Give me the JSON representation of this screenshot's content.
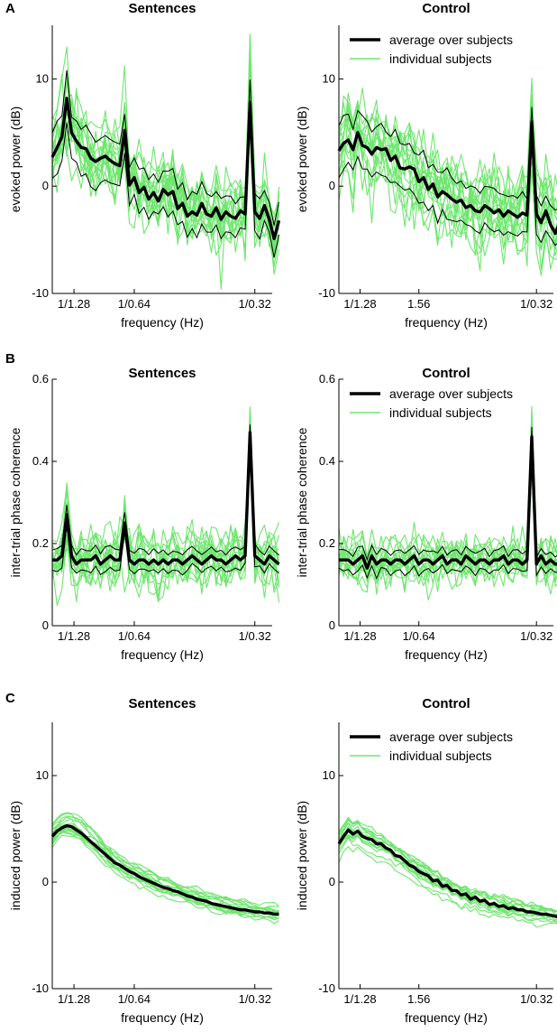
{
  "figure": {
    "panels": [
      {
        "letter": "A",
        "titles": [
          "Sentences",
          "Control"
        ]
      },
      {
        "letter": "B",
        "titles": [
          "Sentences",
          "Control"
        ]
      },
      {
        "letter": "C",
        "titles": [
          "Sentences",
          "Control"
        ]
      }
    ],
    "legend": {
      "average": "average over subjects",
      "individual": "individual subjects"
    }
  },
  "colors": {
    "individual": "#6ee66e",
    "average": "#000000",
    "bounds": "#000000"
  },
  "chart_data": [
    {
      "id": "A-sentences",
      "type": "line",
      "title": "Sentences",
      "xlabel": "frequency (Hz)",
      "ylabel": "evoked power (dB)",
      "xlim": [
        0.5,
        3.35
      ],
      "ylim": [
        -10,
        15
      ],
      "yticks": [
        -10,
        0,
        10
      ],
      "ytick_labels": [
        "-10",
        "0",
        "10"
      ],
      "xticks": [
        0.78125,
        1.5625,
        3.125
      ],
      "xtick_labels": [
        "1/1.28",
        "1/0.64",
        "1/0.32"
      ],
      "legend": false,
      "noise": 2.8,
      "average": {
        "x0": 0.5,
        "dx": 0.0625,
        "values": [
          2.7,
          3.6,
          4.6,
          8.2,
          5.0,
          4.2,
          3.6,
          3.5,
          2.6,
          2.3,
          2.6,
          2.8,
          2.4,
          2.1,
          1.9,
          5.2,
          0.1,
          0.8,
          -0.6,
          -0.1,
          -1.2,
          -0.6,
          -1.4,
          -0.3,
          -0.8,
          -0.5,
          -2.1,
          -1.6,
          -2.8,
          -2.4,
          -2.7,
          -1.6,
          -2.6,
          -2.8,
          -2.0,
          -3.1,
          -2.4,
          -2.8,
          -3.0,
          -2.3,
          -2.6,
          7.8,
          -2.4,
          -3.0,
          -1.8,
          -3.1,
          -4.9,
          -3.2
        ]
      },
      "upper_offset": [
        2.2,
        1.4
      ],
      "lower_offset": [
        2.2,
        1.4
      ]
    },
    {
      "id": "A-control",
      "type": "line",
      "title": "Control",
      "xlabel": "frequency (Hz)",
      "ylabel": "evoked power (dB)",
      "xlim": [
        0.5,
        3.35
      ],
      "ylim": [
        -10,
        15
      ],
      "yticks": [
        -10,
        0,
        10
      ],
      "ytick_labels": [
        "-10",
        "0",
        "10"
      ],
      "xticks": [
        0.78125,
        1.5625,
        3.125
      ],
      "xtick_labels": [
        "1/1.28",
        "1.56",
        "1/0.32"
      ],
      "legend": true,
      "noise": 2.8,
      "average": {
        "x0": 0.5,
        "dx": 0.0625,
        "values": [
          3.3,
          4.0,
          4.3,
          3.4,
          5.0,
          3.8,
          3.6,
          3.0,
          3.6,
          3.4,
          3.5,
          2.4,
          2.8,
          1.7,
          1.6,
          1.8,
          1.6,
          0.4,
          0.8,
          -0.3,
          0.2,
          -1.0,
          -0.5,
          -0.8,
          -1.2,
          -1.5,
          -1.3,
          -2.0,
          -1.8,
          -2.3,
          -2.4,
          -1.8,
          -2.1,
          -2.5,
          -2.2,
          -2.8,
          -2.3,
          -2.6,
          -2.9,
          -2.5,
          -2.7,
          6.0,
          -2.6,
          -3.4,
          -2.3,
          -3.6,
          -4.4,
          -3.3
        ]
      },
      "upper_offset": [
        2.4,
        1.5
      ],
      "lower_offset": [
        2.4,
        1.5
      ]
    },
    {
      "id": "B-sentences",
      "type": "line",
      "title": "Sentences",
      "xlabel": "frequency (Hz)",
      "ylabel": "inter-trial phase coherence",
      "xlim": [
        0.5,
        3.35
      ],
      "ylim": [
        0,
        0.6
      ],
      "yticks": [
        0,
        0.2,
        0.4,
        0.6
      ],
      "ytick_labels": [
        "0",
        "0.2",
        "0.4",
        "0.6"
      ],
      "xticks": [
        0.78125,
        1.5625,
        3.125
      ],
      "xtick_labels": [
        "1/1.28",
        "1/0.64",
        "1/0.32"
      ],
      "legend": false,
      "noise": 0.05,
      "average": {
        "x0": 0.5,
        "dx": 0.0625,
        "values": [
          0.16,
          0.16,
          0.17,
          0.27,
          0.17,
          0.15,
          0.16,
          0.16,
          0.16,
          0.17,
          0.15,
          0.16,
          0.17,
          0.16,
          0.16,
          0.25,
          0.16,
          0.15,
          0.16,
          0.16,
          0.15,
          0.16,
          0.15,
          0.16,
          0.15,
          0.16,
          0.16,
          0.15,
          0.16,
          0.17,
          0.16,
          0.15,
          0.16,
          0.17,
          0.16,
          0.16,
          0.15,
          0.16,
          0.17,
          0.16,
          0.17,
          0.47,
          0.17,
          0.16,
          0.15,
          0.17,
          0.16,
          0.15
        ]
      },
      "upper_offset": [
        0.025,
        0.022
      ],
      "lower_offset": [
        0.025,
        0.022
      ]
    },
    {
      "id": "B-control",
      "type": "line",
      "title": "Control",
      "xlabel": "frequency (Hz)",
      "ylabel": "inter-trial phase coherence",
      "xlim": [
        0.5,
        3.35
      ],
      "ylim": [
        0,
        0.6
      ],
      "yticks": [
        0,
        0.2,
        0.4,
        0.6
      ],
      "ytick_labels": [
        "0",
        "0.2",
        "0.4",
        "0.6"
      ],
      "xticks": [
        0.78125,
        1.5625,
        3.125
      ],
      "xtick_labels": [
        "1/1.28",
        "1/0.64",
        "1/0.32"
      ],
      "legend": true,
      "noise": 0.045,
      "average": {
        "x0": 0.5,
        "dx": 0.0625,
        "values": [
          0.16,
          0.16,
          0.16,
          0.15,
          0.16,
          0.17,
          0.14,
          0.17,
          0.15,
          0.16,
          0.16,
          0.15,
          0.16,
          0.16,
          0.15,
          0.16,
          0.17,
          0.15,
          0.16,
          0.16,
          0.15,
          0.16,
          0.17,
          0.15,
          0.16,
          0.16,
          0.15,
          0.17,
          0.16,
          0.15,
          0.16,
          0.16,
          0.15,
          0.16,
          0.16,
          0.17,
          0.15,
          0.16,
          0.16,
          0.15,
          0.16,
          0.46,
          0.15,
          0.17,
          0.15,
          0.16,
          0.15,
          0.15
        ]
      },
      "upper_offset": [
        0.025,
        0.022
      ],
      "lower_offset": [
        0.025,
        0.022
      ]
    },
    {
      "id": "C-sentences",
      "type": "line",
      "title": "Sentences",
      "xlabel": "frequency (Hz)",
      "ylabel": "induced power (dB)",
      "xlim": [
        0.5,
        3.35
      ],
      "ylim": [
        -10,
        15
      ],
      "yticks": [
        -10,
        0,
        10
      ],
      "ytick_labels": [
        "-10",
        "0",
        "10"
      ],
      "xticks": [
        0.78125,
        1.5625,
        3.125
      ],
      "xtick_labels": [
        "1/1.28",
        "1/0.64",
        "1/0.32"
      ],
      "legend": false,
      "noise": 0.9,
      "smooth": true,
      "average": {
        "x0": 0.5,
        "dx": 0.0625,
        "values": [
          4.3,
          4.8,
          5.1,
          5.3,
          5.2,
          4.9,
          4.6,
          4.2,
          3.8,
          3.4,
          3.0,
          2.6,
          2.2,
          1.8,
          1.6,
          1.3,
          1.0,
          0.8,
          0.5,
          0.3,
          0.1,
          -0.1,
          -0.3,
          -0.5,
          -0.6,
          -0.8,
          -0.9,
          -1.1,
          -1.3,
          -1.4,
          -1.6,
          -1.7,
          -1.8,
          -2.0,
          -2.1,
          -2.2,
          -2.3,
          -2.4,
          -2.5,
          -2.6,
          -2.6,
          -2.7,
          -2.8,
          -2.8,
          -2.9,
          -2.9,
          -3.0,
          -3.0
        ]
      },
      "upper_offset": [
        0,
        0
      ],
      "lower_offset": [
        0,
        0
      ]
    },
    {
      "id": "C-control",
      "type": "line",
      "title": "Control",
      "xlabel": "frequency (Hz)",
      "ylabel": "induced power (dB)",
      "xlim": [
        0.5,
        3.35
      ],
      "ylim": [
        -10,
        15
      ],
      "yticks": [
        -10,
        0,
        10
      ],
      "ytick_labels": [
        "-10",
        "0",
        "10"
      ],
      "xticks": [
        0.78125,
        1.5625,
        3.125
      ],
      "xtick_labels": [
        "1/1.28",
        "1.56",
        "1/0.32"
      ],
      "legend": true,
      "noise": 0.9,
      "smooth": true,
      "average": {
        "x0": 0.5,
        "dx": 0.0625,
        "values": [
          3.6,
          4.3,
          4.9,
          4.5,
          4.8,
          4.3,
          4.1,
          4.0,
          3.6,
          3.6,
          3.2,
          3.0,
          2.5,
          2.4,
          2.0,
          1.6,
          1.4,
          1.0,
          0.8,
          0.6,
          0.1,
          0.2,
          -0.4,
          -0.3,
          -0.8,
          -0.8,
          -1.2,
          -1.1,
          -1.6,
          -1.4,
          -1.8,
          -1.7,
          -2.1,
          -2.0,
          -2.3,
          -2.2,
          -2.5,
          -2.4,
          -2.6,
          -2.6,
          -2.8,
          -2.8,
          -2.9,
          -3.0,
          -3.0,
          -3.1,
          -3.2,
          -3.3
        ]
      },
      "upper_offset": [
        0,
        0
      ],
      "lower_offset": [
        0,
        0
      ]
    }
  ]
}
